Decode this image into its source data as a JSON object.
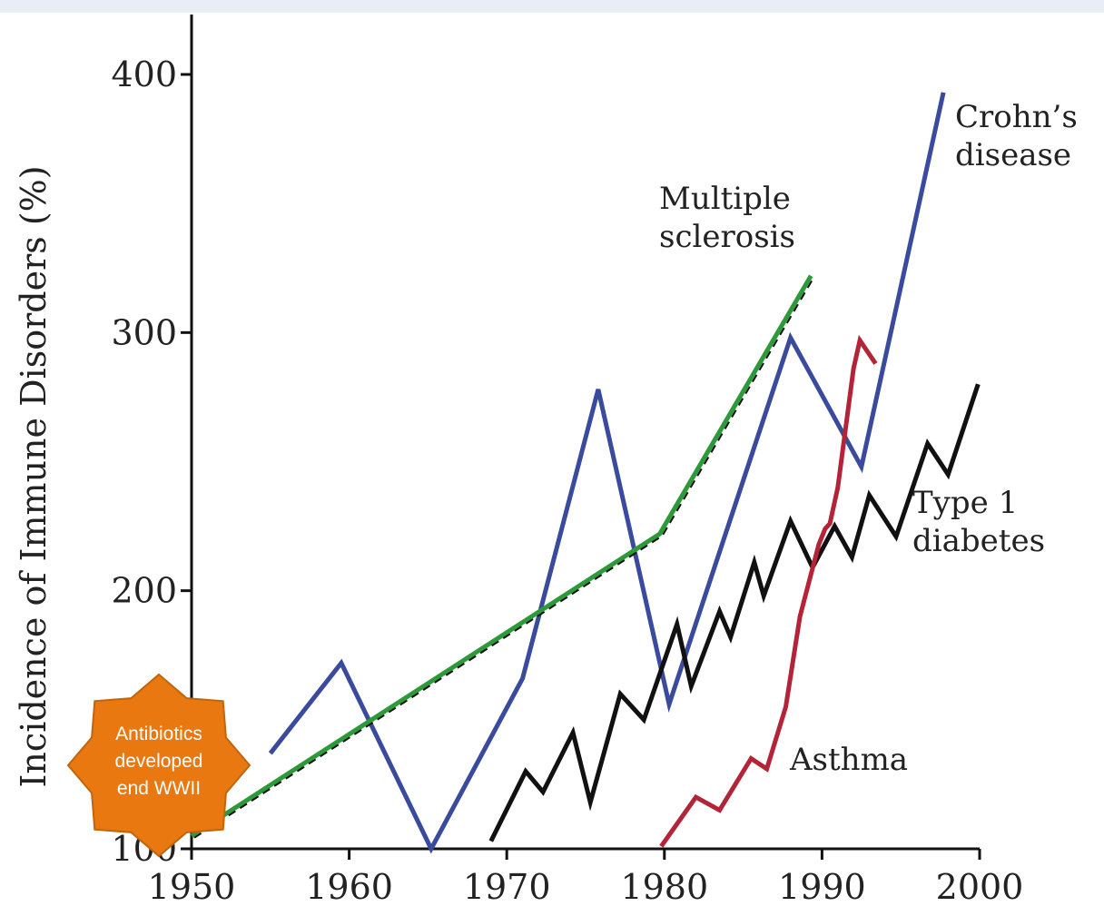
{
  "chart_data": {
    "type": "line",
    "title": "",
    "xlabel": "",
    "ylabel": "Incidence of Immune Disorders (%)",
    "xlim": [
      1950,
      2000
    ],
    "ylim": [
      100,
      420
    ],
    "xticks": [
      "1950",
      "1960",
      "1970",
      "1980",
      "1990",
      "2000"
    ],
    "yticks": [
      "100",
      "200",
      "300",
      "400"
    ],
    "grid": false,
    "legend": "none",
    "series": [
      {
        "name": "Crohn's disease",
        "label_lines": [
          "Crohn’s",
          "disease"
        ],
        "color": "#3a4a9c",
        "dashed_trend": false,
        "x": [
          1955.0,
          1959.5,
          1965.2,
          1971.0,
          1975.8,
          1980.3,
          1988.0,
          1992.5,
          1997.7
        ],
        "y": [
          137,
          172,
          100,
          166,
          278,
          156,
          298,
          248,
          393
        ]
      },
      {
        "name": "Multiple sclerosis",
        "label_lines": [
          "Multiple",
          "sclerosis"
        ],
        "color": "#2d9a3a",
        "dashed_trend": true,
        "x": [
          1950.0,
          1979.7,
          1989.3
        ],
        "y": [
          105,
          222,
          322
        ]
      },
      {
        "name": "Type 1 diabetes",
        "label_lines": [
          "Type 1",
          "diabetes"
        ],
        "color": "#111111",
        "dashed_trend": false,
        "x": [
          1969.0,
          1971.2,
          1972.3,
          1974.2,
          1975.3,
          1977.2,
          1978.7,
          1980.8,
          1981.7,
          1983.5,
          1984.2,
          1985.7,
          1986.3,
          1988.0,
          1989.4,
          1990.8,
          1991.9,
          1993.0,
          1994.7,
          1996.7,
          1998.0,
          1999.9
        ],
        "y": [
          103,
          130,
          122,
          145,
          118,
          160,
          150,
          187,
          163,
          192,
          182,
          211,
          198,
          227,
          209,
          225,
          213,
          237,
          221,
          257,
          245,
          280
        ]
      },
      {
        "name": "Asthma",
        "label_lines": [
          "Asthma"
        ],
        "color": "#b42438",
        "dashed_trend": false,
        "x": [
          1979.8,
          1982.0,
          1983.5,
          1985.5,
          1986.5,
          1987.7,
          1988.6,
          1989.8,
          1990.2,
          1990.5,
          1991.0,
          1992.0,
          1992.4,
          1993.4
        ],
        "y": [
          101,
          120,
          115,
          135,
          131,
          155,
          190,
          218,
          224,
          226,
          240,
          286,
          297,
          288
        ]
      }
    ],
    "annotation": {
      "shape": "star",
      "color": "#e8780f",
      "lines": [
        "Antibiotics",
        "developed",
        "end WWII"
      ]
    }
  }
}
